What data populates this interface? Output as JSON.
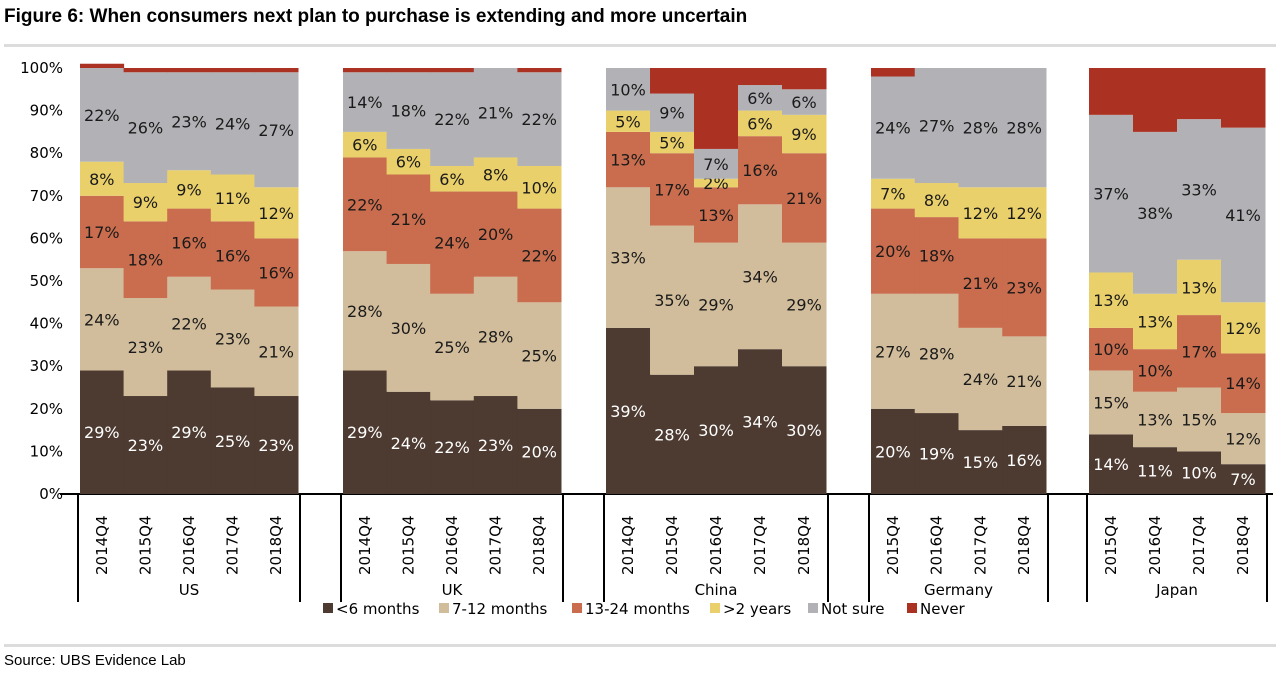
{
  "title": "Figure 6: When consumers next plan to purchase is extending and more uncertain",
  "source": "Source:  UBS Evidence Lab",
  "colors": {
    "<6 months": "#4d3b31",
    "7-12 months": "#d1bd9b",
    "13-24 months": "#c96d4e",
    ">2 years": "#ead06a",
    "Not sure": "#b2b2b6",
    "Never": "#ab3223"
  },
  "chart_data": {
    "type": "bar",
    "stacked": true,
    "normalized": true,
    "ylim": [
      0,
      100
    ],
    "yticks": [
      "0%",
      "10%",
      "20%",
      "30%",
      "40%",
      "50%",
      "60%",
      "70%",
      "80%",
      "90%",
      "100%"
    ],
    "legend": [
      "<6 months",
      "7-12 months",
      "13-24 months",
      ">2 years",
      "Not sure",
      "Never"
    ],
    "legend_position": "bottom",
    "groups": [
      {
        "name": "US",
        "categories": [
          "2014Q4",
          "2015Q4",
          "2016Q4",
          "2017Q4",
          "2018Q4"
        ],
        "values": {
          "<6 months": [
            29,
            23,
            29,
            25,
            23
          ],
          "7-12 months": [
            24,
            23,
            22,
            23,
            21
          ],
          "13-24 months": [
            17,
            18,
            16,
            16,
            16
          ],
          ">2 years": [
            8,
            9,
            9,
            11,
            12
          ],
          "Not sure": [
            22,
            26,
            23,
            24,
            27
          ],
          "Never": [
            1,
            1,
            1,
            1,
            1
          ]
        },
        "labels": {
          "<6 months": [
            "29%",
            "23%",
            "29%",
            "25%",
            "23%"
          ],
          "7-12 months": [
            "24%",
            "23%",
            "22%",
            "23%",
            "21%"
          ],
          "13-24 months": [
            "17%",
            "18%",
            "16%",
            "16%",
            "16%"
          ],
          ">2 years": [
            "8%",
            "9%",
            "9%",
            "11%",
            "12%"
          ],
          "Not sure": [
            "22%",
            "26%",
            "23%",
            "24%",
            "27%"
          ],
          "Never": [
            "",
            "",
            "",
            "",
            ""
          ]
        }
      },
      {
        "name": "UK",
        "categories": [
          "2014Q4",
          "2015Q4",
          "2016Q4",
          "2017Q4",
          "2018Q4"
        ],
        "values": {
          "<6 months": [
            29,
            24,
            22,
            23,
            20
          ],
          "7-12 months": [
            28,
            30,
            25,
            28,
            25
          ],
          "13-24 months": [
            22,
            21,
            24,
            20,
            22
          ],
          ">2 years": [
            6,
            6,
            6,
            8,
            10
          ],
          "Not sure": [
            14,
            18,
            22,
            21,
            22
          ],
          "Never": [
            1,
            1,
            1,
            0,
            1
          ]
        },
        "labels": {
          "<6 months": [
            "29%",
            "24%",
            "22%",
            "23%",
            "20%"
          ],
          "7-12 months": [
            "28%",
            "30%",
            "25%",
            "28%",
            "25%"
          ],
          "13-24 months": [
            "22%",
            "21%",
            "24%",
            "20%",
            "22%"
          ],
          ">2 years": [
            "6%",
            "6%",
            "6%",
            "8%",
            "10%"
          ],
          "Not sure": [
            "14%",
            "18%",
            "22%",
            "21%",
            "22%"
          ],
          "Never": [
            "",
            "",
            "",
            "",
            ""
          ]
        }
      },
      {
        "name": "China",
        "categories": [
          "2014Q4",
          "2015Q4",
          "2016Q4",
          "2017Q4",
          "2018Q4"
        ],
        "values": {
          "<6 months": [
            39,
            28,
            30,
            34,
            30
          ],
          "7-12 months": [
            33,
            35,
            29,
            34,
            29
          ],
          "13-24 months": [
            13,
            17,
            13,
            16,
            21
          ],
          ">2 years": [
            5,
            5,
            2,
            6,
            9
          ],
          "Not sure": [
            10,
            9,
            7,
            6,
            6
          ],
          "Never": [
            0,
            6,
            19,
            4,
            5
          ]
        },
        "labels": {
          "<6 months": [
            "39%",
            "28%",
            "30%",
            "34%",
            "30%"
          ],
          "7-12 months": [
            "33%",
            "35%",
            "29%",
            "34%",
            "29%"
          ],
          "13-24 months": [
            "13%",
            "17%",
            "13%",
            "16%",
            "21%"
          ],
          ">2 years": [
            "5%",
            "5%",
            "2%",
            "6%",
            "9%"
          ],
          "Not sure": [
            "10%",
            "9%",
            "7%",
            "6%",
            "6%"
          ],
          "Never": [
            "",
            "",
            "",
            "",
            ""
          ]
        }
      },
      {
        "name": "Germany",
        "categories": [
          "2015Q4",
          "2016Q4",
          "2017Q4",
          "2018Q4"
        ],
        "values": {
          "<6 months": [
            20,
            19,
            15,
            16
          ],
          "7-12 months": [
            27,
            28,
            24,
            21
          ],
          "13-24 months": [
            20,
            18,
            21,
            23
          ],
          ">2 years": [
            7,
            8,
            12,
            12
          ],
          "Not sure": [
            24,
            27,
            28,
            28
          ],
          "Never": [
            2,
            0,
            0,
            0
          ]
        },
        "labels": {
          "<6 months": [
            "20%",
            "19%",
            "15%",
            "16%"
          ],
          "7-12 months": [
            "27%",
            "28%",
            "24%",
            "21%"
          ],
          "13-24 months": [
            "20%",
            "18%",
            "21%",
            "23%"
          ],
          ">2 years": [
            "7%",
            "8%",
            "12%",
            "12%"
          ],
          "Not sure": [
            "24%",
            "27%",
            "28%",
            "28%"
          ],
          "Never": [
            "",
            "",
            "",
            ""
          ]
        }
      },
      {
        "name": "Japan",
        "categories": [
          "2015Q4",
          "2016Q4",
          "2017Q4",
          "2018Q4"
        ],
        "values": {
          "<6 months": [
            14,
            11,
            10,
            7
          ],
          "7-12 months": [
            15,
            13,
            15,
            12
          ],
          "13-24 months": [
            10,
            10,
            17,
            14
          ],
          ">2 years": [
            13,
            13,
            13,
            12
          ],
          "Not sure": [
            37,
            38,
            33,
            41
          ],
          "Never": [
            11,
            15,
            12,
            14
          ]
        },
        "labels": {
          "<6 months": [
            "14%",
            "11%",
            "10%",
            "7%"
          ],
          "7-12 months": [
            "15%",
            "13%",
            "15%",
            "12%"
          ],
          "13-24 months": [
            "10%",
            "10%",
            "17%",
            "14%"
          ],
          ">2 years": [
            "13%",
            "13%",
            "13%",
            "12%"
          ],
          "Not sure": [
            "37%",
            "38%",
            "33%",
            "41%"
          ],
          "Never": [
            "",
            "",
            "",
            ""
          ]
        }
      }
    ]
  }
}
